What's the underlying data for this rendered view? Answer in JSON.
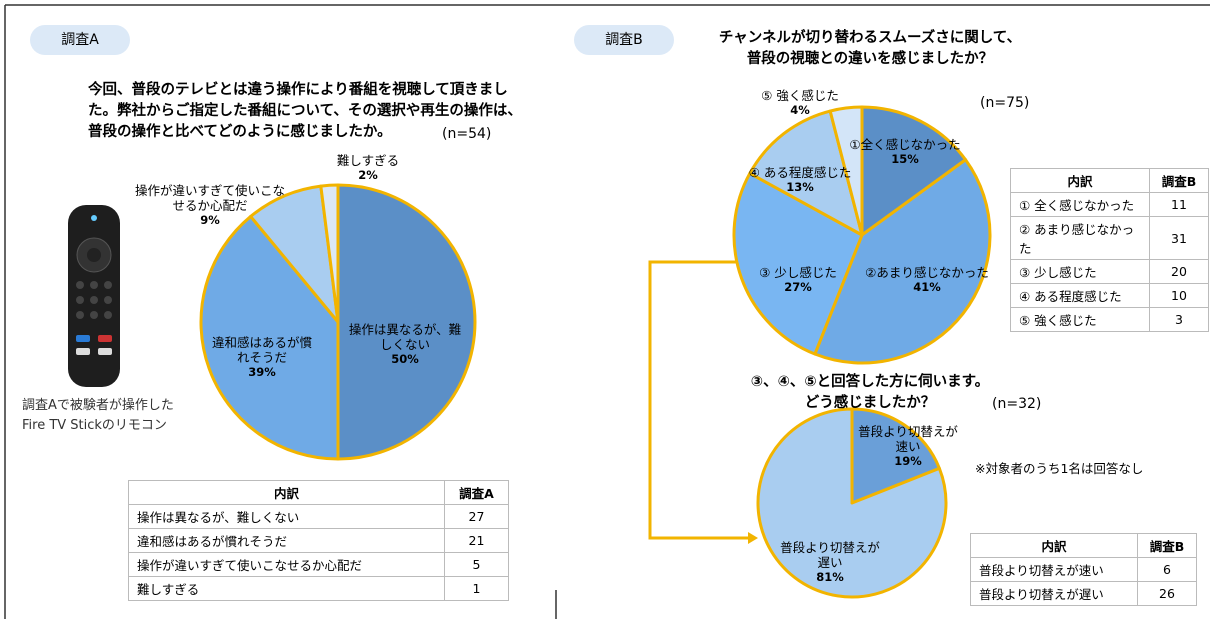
{
  "labels": {
    "survey_a": "調査A",
    "survey_b": "調査B"
  },
  "chart_data": [
    {
      "type": "pie",
      "title": [
        "今回、普段のテレビとは違う操作により番組を視聴して頂きまし",
        "た。弊社からご指定した番組について、その選択や再生の操作は、",
        "普段の操作と比べてどのように感じましたか。"
      ],
      "n": "(n=54)",
      "categories": [
        "操作は異なるが、難しくない",
        "違和感はあるが慣れそうだ",
        "操作が違いすぎて使いこなせるか心配だ",
        "難しすぎる"
      ],
      "values": [
        50,
        39,
        9,
        2
      ],
      "value_labels": [
        "50%",
        "39%",
        "9%",
        "2%"
      ],
      "colors": [
        "#5b8fc7",
        "#6faae6",
        "#a9cdf0",
        "#dbe8f6"
      ],
      "edge_color": "#f2b400"
    },
    {
      "type": "pie",
      "title": [
        "チャンネルが切り替わるスムーズさに関して、",
        "普段の視聴との違いを感じましたか？"
      ],
      "n": "(n=75)",
      "categories": [
        "①全く感じなかった",
        "②あまり感じなかった",
        "③ 少し感じた",
        "④ ある程度感じた",
        "⑤ 強く感じた"
      ],
      "values": [
        15,
        41,
        27,
        13,
        4
      ],
      "value_labels": [
        "15%",
        "41%",
        "27%",
        "13%",
        "4%"
      ],
      "colors": [
        "#5b8fc7",
        "#6faae6",
        "#79b6f2",
        "#a9cdf0",
        "#d3e5f8"
      ],
      "edge_color": "#f2b400"
    },
    {
      "type": "pie",
      "title": [
        "③、④、⑤と回答した方に伺います。",
        "どう感じましたか？"
      ],
      "n": "(n=32)",
      "categories": [
        "普段より切替えが速い",
        "普段より切替えが遅い"
      ],
      "values": [
        19,
        81
      ],
      "value_labels": [
        "19%",
        "81%"
      ],
      "colors": [
        "#6a9fd8",
        "#a9cdf0"
      ],
      "edge_color": "#f2b400"
    }
  ],
  "remote_caption": [
    "調査Aで被験者が操作した",
    "Fire TV Stickのリモコン"
  ],
  "note": "※対象者のうち1名は回答なし",
  "tables": [
    {
      "header": [
        "内訳",
        "調査A"
      ],
      "rows": [
        [
          "操作は異なるが、難しくない",
          27
        ],
        [
          "違和感はあるが慣れそうだ",
          21
        ],
        [
          "操作が違いすぎて使いこなせるか心配だ",
          5
        ],
        [
          "難しすぎる",
          1
        ]
      ]
    },
    {
      "header": [
        "内訳",
        "調査B"
      ],
      "rows": [
        [
          "① 全く感じなかった",
          11
        ],
        [
          "② あまり感じなかった",
          31
        ],
        [
          "③ 少し感じた",
          20
        ],
        [
          "④ ある程度感じた",
          10
        ],
        [
          "⑤ 強く感じた",
          3
        ]
      ]
    },
    {
      "header": [
        "内訳",
        "調査B"
      ],
      "rows": [
        [
          "普段より切替えが速い",
          6
        ],
        [
          "普段より切替えが遅い",
          26
        ]
      ]
    }
  ]
}
